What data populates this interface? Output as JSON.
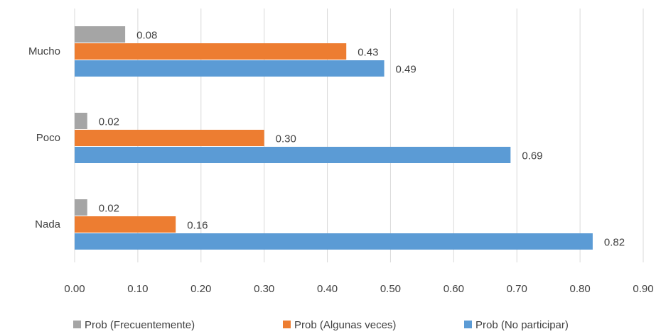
{
  "chart_data": {
    "type": "bar",
    "orientation": "horizontal",
    "categories": [
      "Mucho",
      "Poco",
      "Nada"
    ],
    "series": [
      {
        "name": "Prob (Frecuentemente)",
        "color": "#a5a5a5",
        "values": [
          0.08,
          0.02,
          0.02
        ],
        "value_labels": [
          "0.08",
          "0.02",
          "0.02"
        ]
      },
      {
        "name": "Prob (Algunas veces)",
        "color": "#ed7d31",
        "values": [
          0.43,
          0.3,
          0.16
        ],
        "value_labels": [
          "0.43",
          "0.30",
          "0.16"
        ]
      },
      {
        "name": "Prob (No participar)",
        "color": "#5b9bd5",
        "values": [
          0.49,
          0.69,
          0.82
        ],
        "value_labels": [
          "0.49",
          "0.69",
          "0.82"
        ]
      }
    ],
    "xlim": [
      0,
      0.9
    ],
    "xticks": [
      {
        "value": 0,
        "label": "0.00"
      },
      {
        "value": 0.1,
        "label": "0.10"
      },
      {
        "value": 0.2,
        "label": "0.20"
      },
      {
        "value": 0.3,
        "label": "0.30"
      },
      {
        "value": 0.4,
        "label": "0.40"
      },
      {
        "value": 0.5,
        "label": "0.50"
      },
      {
        "value": 0.6,
        "label": "0.60"
      },
      {
        "value": 0.7,
        "label": "0.70"
      },
      {
        "value": 0.8,
        "label": "0.80"
      },
      {
        "value": 0.9,
        "label": "0.90"
      }
    ],
    "grid": true,
    "legend": "bottom"
  }
}
